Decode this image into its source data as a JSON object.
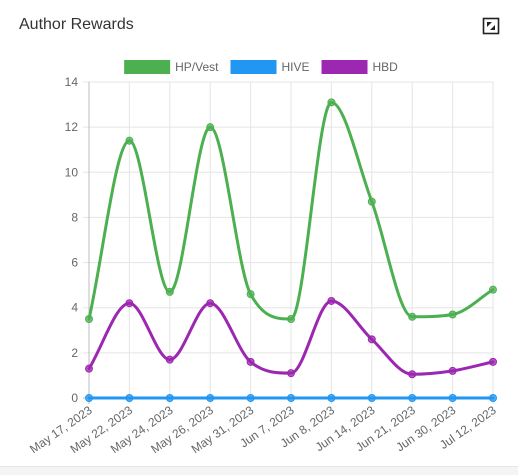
{
  "panel": {
    "title": "Author Rewards"
  },
  "chart_data": {
    "type": "line",
    "categories": [
      "May 17, 2023",
      "May 22, 2023",
      "May 24, 2023",
      "May 26, 2023",
      "May 31, 2023",
      "Jun 7, 2023",
      "Jun 8, 2023",
      "Jun 14, 2023",
      "Jun 21, 2023",
      "Jun 30, 2023",
      "Jul 12, 2023"
    ],
    "series": [
      {
        "name": "HP/Vest",
        "color": "#4caf50",
        "values": [
          3.5,
          11.4,
          4.7,
          12.0,
          4.6,
          3.5,
          13.1,
          8.7,
          3.6,
          3.7,
          4.8
        ]
      },
      {
        "name": "HIVE",
        "color": "#2196f3",
        "values": [
          0,
          0,
          0,
          0,
          0,
          0,
          0,
          0,
          0,
          0,
          0
        ]
      },
      {
        "name": "HBD",
        "color": "#9c27b0",
        "values": [
          1.3,
          4.2,
          1.7,
          4.2,
          1.6,
          1.1,
          4.3,
          2.6,
          1.05,
          1.2,
          1.6
        ]
      }
    ],
    "yticks": [
      "0",
      "2",
      "4",
      "6",
      "8",
      "10",
      "12",
      "14"
    ],
    "ylim": [
      0,
      14
    ],
    "grid": true,
    "legend": "top-center"
  }
}
